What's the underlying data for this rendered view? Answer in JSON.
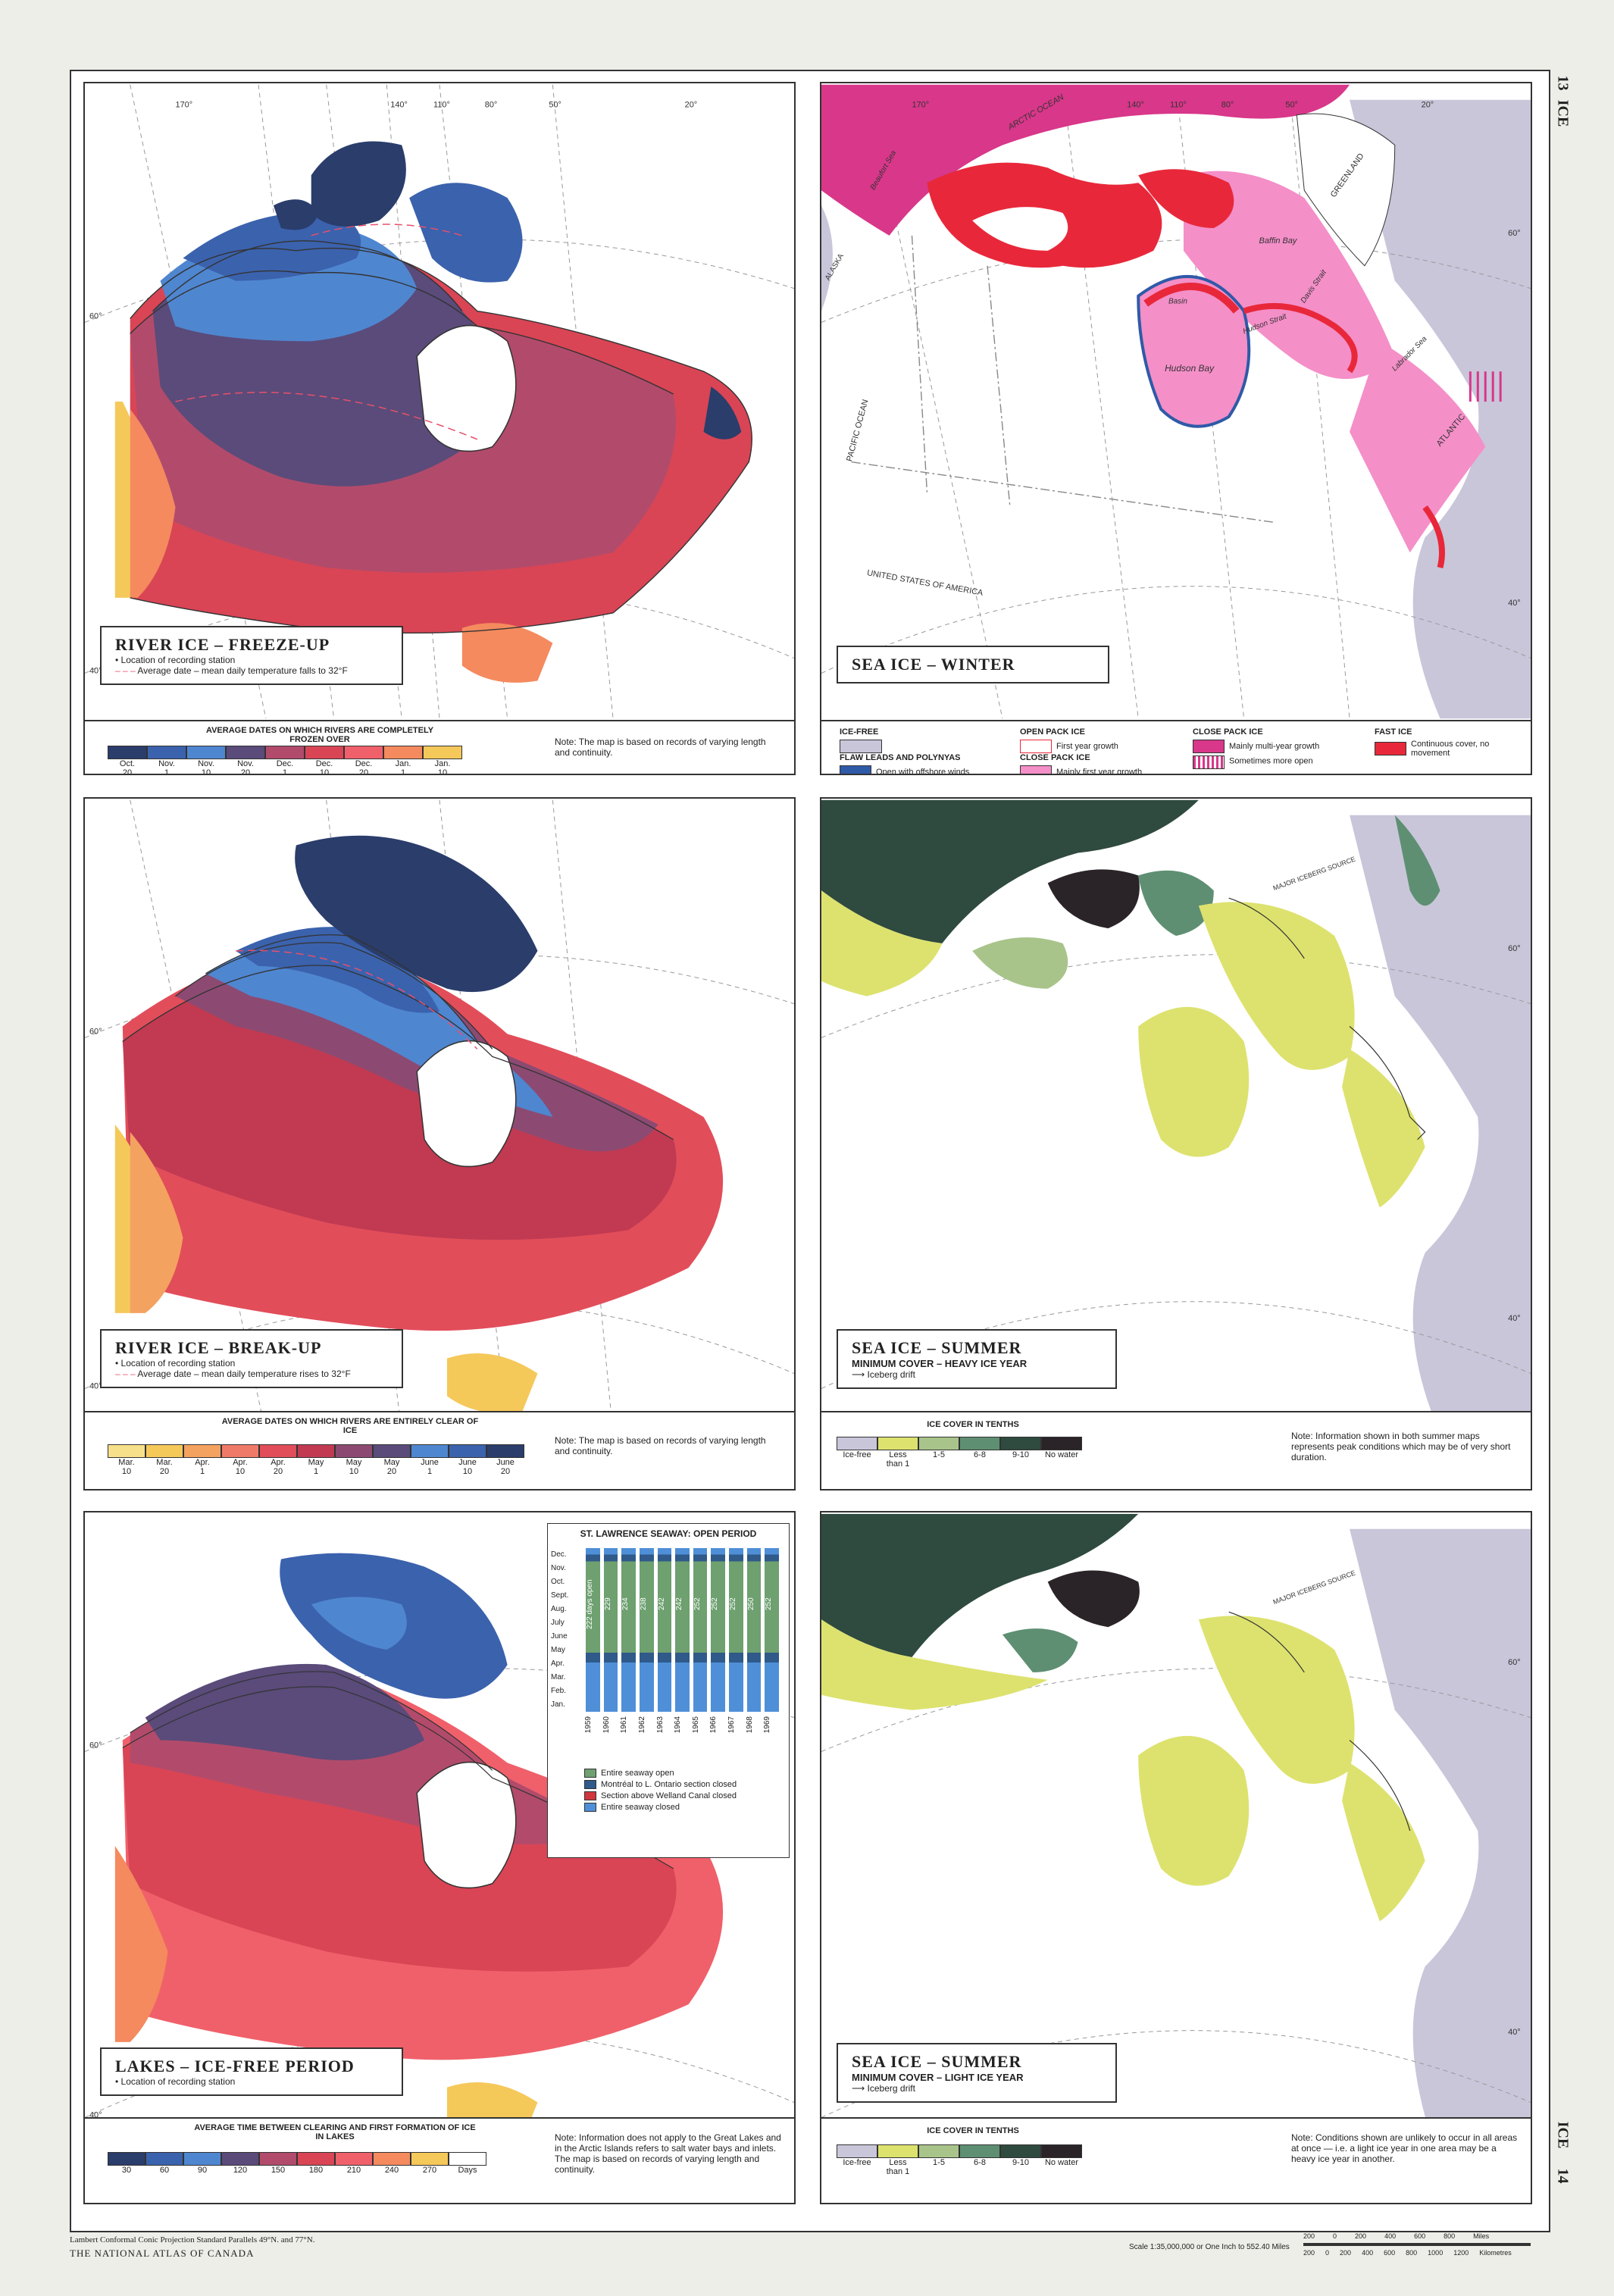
{
  "margins": {
    "top_right_page": "13",
    "top_right_label": "ICE",
    "bottom_right_page": "14",
    "bottom_right_label": "ICE",
    "projection_line": "Lambert Conformal Conic Projection Standard Parallels 49°N. and 77°N.",
    "publisher": "THE NATIONAL ATLAS OF CANADA",
    "scale_text": "Scale 1:35,000,000 or One Inch to 552.40 Miles",
    "miles_ticks": [
      "200",
      "0",
      "200",
      "400",
      "600",
      "800"
    ],
    "miles_unit": "Miles",
    "km_ticks": [
      "200",
      "0",
      "200",
      "400",
      "600",
      "800",
      "1000",
      "1200"
    ],
    "km_unit": "Kilometres"
  },
  "graticule": {
    "longitudes": [
      "170°",
      "140°",
      "110°",
      "80°",
      "50°",
      "20°"
    ],
    "lat60": "60°",
    "lat40": "40°"
  },
  "panels": {
    "freeze": {
      "title": "RIVER ICE – FREEZE-UP",
      "station": "Location of recording station",
      "avg_date": "Average date – mean daily temperature falls to 32°F",
      "scale_title": "AVERAGE DATES ON WHICH RIVERS ARE COMPLETELY FROZEN OVER",
      "note": "Note: The map is based on records of varying length and continuity.",
      "swatches": [
        {
          "color": "#2a3d6b",
          "l1": "Oct.",
          "l2": "20"
        },
        {
          "color": "#3b62ad",
          "l1": "Nov.",
          "l2": "1"
        },
        {
          "color": "#4f86d0",
          "l1": "Nov.",
          "l2": "10"
        },
        {
          "color": "#5a4b7a",
          "l1": "Nov.",
          "l2": "20"
        },
        {
          "color": "#b24b6b",
          "l1": "Dec.",
          "l2": "1"
        },
        {
          "color": "#d94555",
          "l1": "Dec.",
          "l2": "10"
        },
        {
          "color": "#f0606a",
          "l1": "Dec.",
          "l2": "20"
        },
        {
          "color": "#f48a5e",
          "l1": "Jan.",
          "l2": "1"
        },
        {
          "color": "#f5c85a",
          "l1": "Jan.",
          "l2": "10"
        }
      ]
    },
    "breakup": {
      "title": "RIVER ICE – BREAK-UP",
      "station": "Location of recording station",
      "avg_date": "Average date – mean daily temperature rises to 32°F",
      "scale_title": "AVERAGE DATES ON WHICH RIVERS ARE ENTIRELY CLEAR OF ICE",
      "note": "Note: The map is based on records of varying length and continuity.",
      "swatches": [
        {
          "color": "#f7e08a",
          "l1": "Mar.",
          "l2": "10"
        },
        {
          "color": "#f5c85a",
          "l1": "Mar.",
          "l2": "20"
        },
        {
          "color": "#f4a260",
          "l1": "Apr.",
          "l2": "1"
        },
        {
          "color": "#f07a68",
          "l1": "Apr.",
          "l2": "10"
        },
        {
          "color": "#e24d5a",
          "l1": "Apr.",
          "l2": "20"
        },
        {
          "color": "#c13a52",
          "l1": "May",
          "l2": "1"
        },
        {
          "color": "#8c4a72",
          "l1": "May",
          "l2": "10"
        },
        {
          "color": "#5a4b7a",
          "l1": "May",
          "l2": "20"
        },
        {
          "color": "#4f86d0",
          "l1": "June",
          "l2": "1"
        },
        {
          "color": "#3b62ad",
          "l1": "June",
          "l2": "10"
        },
        {
          "color": "#2a3d6b",
          "l1": "June",
          "l2": "20"
        }
      ]
    },
    "lakes": {
      "title": "LAKES – ICE-FREE PERIOD",
      "station": "Location of recording station",
      "scale_title": "AVERAGE TIME BETWEEN CLEARING AND FIRST FORMATION OF ICE IN LAKES",
      "note": "Note: Information does not apply to the Great Lakes and in the Arctic Islands refers to salt water bays and inlets. The map is based on records of varying length and continuity.",
      "swatches": [
        {
          "color": "#2a3d6b",
          "l1": "30"
        },
        {
          "color": "#3b62ad",
          "l1": "60"
        },
        {
          "color": "#4f86d0",
          "l1": "90"
        },
        {
          "color": "#5a4b7a",
          "l1": "120"
        },
        {
          "color": "#b24b6b",
          "l1": "150"
        },
        {
          "color": "#d94555",
          "l1": "180"
        },
        {
          "color": "#f0606a",
          "l1": "210"
        },
        {
          "color": "#f48a5e",
          "l1": "240"
        },
        {
          "color": "#f5c85a",
          "l1": "270"
        },
        {
          "color": "#ffffff",
          "l1": "Days"
        }
      ]
    },
    "winter": {
      "title": "SEA ICE – WINTER",
      "legend": {
        "icefree": "ICE-FREE",
        "flaw_head": "FLAW LEADS AND POLYNYAS",
        "flaw": "Open with offshore winds",
        "openpack_head": "OPEN PACK ICE",
        "openpack": "First year growth",
        "closepack_head": "CLOSE PACK ICE",
        "closepack": "Mainly first year growth",
        "closepack2_head": "CLOSE PACK ICE",
        "closepack2a": "Mainly multi-year growth",
        "closepack2b": "Sometimes more open",
        "fast_head": "FAST ICE",
        "fast": "Continuous cover, no movement"
      },
      "labels": {
        "arctic": "ARCTIC OCEAN",
        "beaufort": "Beaufort Sea",
        "alaska": "ALASKA",
        "baffin": "Baffin Bay",
        "davis": "Davis Strait",
        "hudson": "Hudson Bay",
        "hudsonstrait": "Hudson Strait",
        "labrador": "Labrador Sea",
        "atlantic": "ATLANTIC",
        "pacific": "PACIFIC OCEAN",
        "greenland": "GREENLAND",
        "usa": "UNITED STATES OF AMERICA",
        "basin": "Basin"
      }
    },
    "summer_heavy": {
      "title": "SEA ICE – SUMMER",
      "subtitle": "MINIMUM COVER – HEAVY ICE YEAR",
      "drift": "Iceberg drift",
      "source": "MAJOR ICEBERG SOURCE",
      "scale_title": "ICE COVER IN TENTHS",
      "note": "Note: Information shown in both summer maps represents peak conditions which may be of very short duration.",
      "swatches": [
        {
          "color": "#c9c6da",
          "l1": "Ice-free"
        },
        {
          "color": "#dde26e",
          "l1": "Less",
          "l2": "than 1"
        },
        {
          "color": "#a9c48a",
          "l1": "1-5"
        },
        {
          "color": "#5e8f72",
          "l1": "6-8"
        },
        {
          "color": "#2f4a3e",
          "l1": "9-10"
        },
        {
          "color": "#2a2428",
          "l1": "No water"
        }
      ]
    },
    "summer_light": {
      "title": "SEA ICE – SUMMER",
      "subtitle": "MINIMUM COVER – LIGHT ICE YEAR",
      "drift": "Iceberg drift",
      "source": "MAJOR ICEBERG SOURCE",
      "scale_title": "ICE COVER IN TENTHS",
      "note": "Note: Conditions shown are unlikely to occur in all areas at once — i.e. a light ice year in one area may be a heavy ice year in another.",
      "swatches": [
        {
          "color": "#c9c6da",
          "l1": "Ice-free"
        },
        {
          "color": "#dde26e",
          "l1": "Less",
          "l2": "than 1"
        },
        {
          "color": "#a9c48a",
          "l1": "1-5"
        },
        {
          "color": "#5e8f72",
          "l1": "6-8"
        },
        {
          "color": "#2f4a3e",
          "l1": "9-10"
        },
        {
          "color": "#2a2428",
          "l1": "No water"
        }
      ]
    }
  },
  "seaway": {
    "title": "ST. LAWRENCE SEAWAY: OPEN PERIOD",
    "months": [
      "Dec.",
      "Nov.",
      "Oct.",
      "Sept.",
      "Aug.",
      "July",
      "June",
      "May",
      "Apr.",
      "Mar.",
      "Feb.",
      "Jan."
    ],
    "years": [
      "1959",
      "1960",
      "1961",
      "1962",
      "1963",
      "1964",
      "1965",
      "1966",
      "1967",
      "1968",
      "1969"
    ],
    "days": [
      "222 days open",
      "229",
      "234",
      "238",
      "242",
      "242",
      "252",
      "252",
      "252",
      "250",
      "252"
    ],
    "legend": [
      {
        "color": "#6ea070",
        "label": "Entire seaway open"
      },
      {
        "color": "#2f5a8a",
        "label": "Montréal to L. Ontario section closed"
      },
      {
        "color": "#d0363e",
        "label": "Section above Welland Canal closed"
      },
      {
        "color": "#4f8fd8",
        "label": "Entire seaway closed"
      }
    ]
  }
}
